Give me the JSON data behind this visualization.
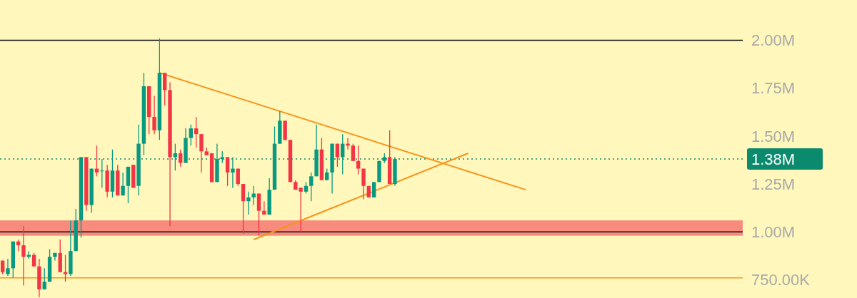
{
  "chart_data": {
    "type": "candlestick",
    "ylim": [
      655000,
      2210000
    ],
    "yticks": [
      {
        "value": 750000,
        "label": "750.00K"
      },
      {
        "value": 1000000,
        "label": "1.00M"
      },
      {
        "value": 1250000,
        "label": "1.25M"
      },
      {
        "value": 1500000,
        "label": "1.50M"
      },
      {
        "value": 1750000,
        "label": "1.75M"
      },
      {
        "value": 2000000,
        "label": "2.00M"
      }
    ],
    "tick_labels": "y",
    "grid": false,
    "categories": [
      null,
      null,
      null,
      null,
      null,
      null,
      null,
      null,
      null,
      null,
      null,
      null,
      null,
      null,
      null,
      null,
      null,
      null,
      null,
      null,
      null,
      null,
      null,
      null,
      null,
      null,
      null,
      null,
      null,
      null,
      null,
      null,
      null,
      null,
      null,
      null,
      null,
      null,
      null,
      null,
      null,
      null,
      null,
      null,
      null,
      null,
      null,
      null,
      null,
      null,
      null,
      null,
      null,
      null,
      null,
      null,
      null,
      null,
      null,
      null,
      null,
      null,
      null,
      null,
      null,
      null,
      null,
      null,
      null,
      null,
      null,
      null,
      null,
      null,
      null,
      null,
      null,
      null,
      null,
      null,
      null,
      null,
      null,
      null,
      null,
      null,
      null,
      null,
      null,
      null,
      null,
      null,
      null,
      null,
      null,
      null,
      null,
      null,
      null,
      null,
      null,
      null,
      null,
      null,
      null,
      null,
      null,
      null,
      null,
      null,
      null,
      null,
      null,
      null,
      null,
      null,
      null,
      null,
      null,
      null,
      null,
      null,
      null,
      null,
      null,
      null,
      null,
      null,
      null,
      null,
      null,
      null,
      null,
      null,
      null,
      null,
      null,
      null,
      null,
      null,
      null,
      null
    ],
    "ohlc": [
      [
        850000,
        850000,
        780000,
        790000
      ],
      [
        780000,
        860000,
        770000,
        810000
      ],
      [
        810000,
        950000,
        760000,
        950000
      ],
      [
        950000,
        960000,
        900000,
        930000
      ],
      [
        930000,
        1030000,
        720000,
        870000
      ],
      [
        870000,
        900000,
        860000,
        880000
      ],
      [
        880000,
        890000,
        820000,
        820000
      ],
      [
        820000,
        860000,
        660000,
        700000
      ],
      [
        700000,
        810000,
        700000,
        740000
      ],
      [
        740000,
        910000,
        740000,
        870000
      ],
      [
        870000,
        890000,
        850000,
        890000
      ],
      [
        890000,
        960000,
        790000,
        790000
      ],
      [
        790000,
        880000,
        740000,
        780000
      ],
      [
        780000,
        1060000,
        770000,
        900000
      ],
      [
        900000,
        1120000,
        900000,
        1060000
      ],
      [
        1060000,
        1390000,
        970000,
        1390000
      ],
      [
        1390000,
        1390000,
        1110000,
        1140000
      ],
      [
        1140000,
        1330000,
        1100000,
        1330000
      ],
      [
        1330000,
        1450000,
        1290000,
        1310000
      ],
      [
        1320000,
        1380000,
        1230000,
        1320000
      ],
      [
        1320000,
        1350000,
        1180000,
        1210000
      ],
      [
        1210000,
        1430000,
        1180000,
        1320000
      ],
      [
        1320000,
        1350000,
        1190000,
        1190000
      ],
      [
        1190000,
        1310000,
        1190000,
        1240000
      ],
      [
        1240000,
        1340000,
        1150000,
        1340000
      ],
      [
        1350000,
        1350000,
        1230000,
        1230000
      ],
      [
        1240000,
        1560000,
        1190000,
        1460000
      ],
      [
        1460000,
        1830000,
        1400000,
        1760000
      ],
      [
        1760000,
        1760000,
        1510000,
        1600000
      ],
      [
        1600000,
        1710000,
        1510000,
        1530000
      ],
      [
        1530000,
        2010000,
        1480000,
        1830000
      ],
      [
        1830000,
        1830000,
        1660000,
        1740000
      ],
      [
        1740000,
        1780000,
        1030000,
        1390000
      ],
      [
        1390000,
        1460000,
        1320000,
        1410000
      ],
      [
        1410000,
        1430000,
        1340000,
        1360000
      ],
      [
        1360000,
        1540000,
        1360000,
        1490000
      ],
      [
        1490000,
        1560000,
        1450000,
        1540000
      ],
      [
        1540000,
        1600000,
        1440000,
        1510000
      ],
      [
        1510000,
        1510000,
        1310000,
        1420000
      ],
      [
        1420000,
        1440000,
        1400000,
        1400000
      ],
      [
        1410000,
        1410000,
        1260000,
        1260000
      ],
      [
        1260000,
        1460000,
        1260000,
        1380000
      ],
      [
        1380000,
        1420000,
        1360000,
        1390000
      ],
      [
        1390000,
        1390000,
        1240000,
        1310000
      ],
      [
        1310000,
        1390000,
        1230000,
        1330000
      ],
      [
        1330000,
        1330000,
        1240000,
        1250000
      ],
      [
        1250000,
        1250000,
        990000,
        1160000
      ],
      [
        1160000,
        1210000,
        1090000,
        1180000
      ],
      [
        1180000,
        1240000,
        1140000,
        1200000
      ],
      [
        1200000,
        1200000,
        980000,
        1110000
      ],
      [
        1110000,
        1160000,
        1090000,
        1090000
      ],
      [
        1090000,
        1280000,
        1090000,
        1220000
      ],
      [
        1220000,
        1550000,
        1220000,
        1460000
      ],
      [
        1460000,
        1630000,
        1460000,
        1580000
      ],
      [
        1580000,
        1580000,
        1480000,
        1480000
      ],
      [
        1480000,
        1480000,
        1260000,
        1260000
      ],
      [
        1260000,
        1270000,
        1220000,
        1220000
      ],
      [
        1230000,
        1230000,
        1000000,
        1210000
      ],
      [
        1210000,
        1260000,
        1200000,
        1240000
      ],
      [
        1240000,
        1310000,
        1160000,
        1290000
      ],
      [
        1290000,
        1560000,
        1290000,
        1430000
      ],
      [
        1430000,
        1490000,
        1270000,
        1270000
      ],
      [
        1270000,
        1330000,
        1270000,
        1310000
      ],
      [
        1310000,
        1460000,
        1200000,
        1460000
      ],
      [
        1460000,
        1460000,
        1340000,
        1390000
      ],
      [
        1390000,
        1510000,
        1300000,
        1460000
      ],
      [
        1460000,
        1490000,
        1430000,
        1450000
      ],
      [
        1450000,
        1460000,
        1370000,
        1370000
      ],
      [
        1370000,
        1450000,
        1300000,
        1330000
      ],
      [
        1330000,
        1330000,
        1170000,
        1240000
      ],
      [
        1240000,
        1240000,
        1180000,
        1180000
      ],
      [
        1180000,
        1260000,
        1180000,
        1260000
      ],
      [
        1260000,
        1370000,
        1260000,
        1370000
      ],
      [
        1370000,
        1410000,
        1360000,
        1390000
      ],
      [
        1390000,
        1530000,
        1250000,
        1250000
      ],
      [
        1250000,
        1390000,
        1240000,
        1380000
      ],
      null,
      null,
      null,
      null,
      null,
      null,
      null,
      null,
      null,
      null,
      null,
      null,
      null,
      null,
      null,
      null,
      null,
      null,
      null,
      null,
      null,
      null,
      null,
      null,
      null,
      null,
      null,
      null,
      null,
      null,
      null,
      null,
      null,
      null,
      null,
      null,
      null,
      null,
      null,
      null,
      null,
      null,
      null,
      null,
      null,
      null,
      null,
      null,
      null,
      null,
      null,
      null,
      null,
      null,
      null,
      null,
      null,
      null,
      null,
      null,
      null,
      null,
      null,
      null,
      null,
      null
    ],
    "colors": [
      "#f23645",
      "#089981",
      "#089981",
      "#f23645",
      "#f23645",
      "#089981",
      "#f23645",
      "#f23645",
      "#089981",
      "#089981",
      "#089981",
      "#f23645",
      "#f23645",
      "#089981",
      "#089981",
      "#089981",
      "#f23645",
      "#089981",
      "#f23645",
      "#089981",
      "#f23645",
      "#089981",
      "#f23645",
      "#089981",
      "#089981",
      "#f23645",
      "#089981",
      "#089981",
      "#f23645",
      "#f23645",
      "#089981",
      "#f23645",
      "#f23645",
      "#089981",
      "#f23645",
      "#089981",
      "#089981",
      "#f23645",
      "#f23645",
      "#f23645",
      "#f23645",
      "#089981",
      "#089981",
      "#f23645",
      "#089981",
      "#f23645",
      "#f23645",
      "#089981",
      "#089981",
      "#f23645",
      "#f23645",
      "#089981",
      "#089981",
      "#089981",
      "#f23645",
      "#f23645",
      "#f23645",
      "#f23645",
      "#089981",
      "#089981",
      "#089981",
      "#f23645",
      "#089981",
      "#089981",
      "#f23645",
      "#089981",
      "#f23645",
      "#f23645",
      "#f23645",
      "#f23645",
      "#f23645",
      "#089981",
      "#089981",
      "#089981",
      "#f23645",
      "#089981",
      null,
      null,
      null,
      null,
      null,
      null,
      null,
      null,
      null,
      null,
      null,
      null,
      null,
      null,
      null,
      null,
      null,
      null,
      null,
      null,
      null,
      null,
      null,
      null,
      null,
      null,
      null,
      null,
      null,
      null,
      null,
      null,
      null,
      null,
      null,
      null,
      null,
      null,
      null,
      null,
      null,
      null,
      null,
      null,
      null,
      null,
      null,
      null,
      null,
      null,
      null,
      null,
      null,
      null,
      null,
      null,
      null,
      null,
      null,
      null,
      null,
      null,
      null,
      null,
      null,
      null
    ],
    "series": [
      {
        "type": "line",
        "color": "#f7941d",
        "values": [
          null,
          null,
          null,
          null,
          null,
          null,
          null,
          null,
          null,
          null,
          null,
          null,
          null,
          null,
          null,
          null,
          null,
          null,
          null,
          null,
          null,
          null,
          null,
          null,
          null,
          null,
          null,
          null,
          null,
          null,
          1830000,
          null,
          null,
          null,
          null,
          null,
          null,
          null,
          null,
          null,
          null,
          null,
          null,
          null,
          null,
          null,
          null,
          null,
          null,
          null,
          null,
          null,
          null,
          null,
          null,
          null,
          null,
          null,
          null,
          null,
          null,
          null,
          null,
          null,
          null,
          null,
          null,
          null,
          null,
          null,
          null,
          null,
          null,
          null,
          null,
          null,
          null,
          null,
          null,
          null,
          null,
          null,
          null,
          null,
          null,
          null,
          null,
          null,
          null,
          null,
          null,
          null,
          null,
          null,
          null,
          null,
          null,
          null,
          null,
          null,
          1220000,
          null,
          null,
          null,
          null,
          null,
          null,
          null,
          null,
          null,
          null,
          null,
          null,
          null,
          null,
          null,
          null,
          null,
          null,
          null,
          null,
          null,
          null,
          null,
          null,
          null,
          null,
          null,
          null,
          null,
          null,
          null,
          null,
          null,
          null,
          null,
          null,
          null,
          null,
          null,
          null,
          null
        ]
      },
      {
        "type": "line",
        "color": "#f7941d",
        "values": [
          null,
          null,
          null,
          null,
          null,
          null,
          null,
          null,
          null,
          null,
          null,
          null,
          null,
          null,
          null,
          null,
          null,
          null,
          null,
          null,
          null,
          null,
          null,
          null,
          null,
          null,
          null,
          null,
          null,
          null,
          null,
          null,
          null,
          null,
          null,
          null,
          null,
          null,
          null,
          null,
          null,
          null,
          null,
          null,
          null,
          null,
          null,
          null,
          960000,
          null,
          null,
          null,
          null,
          null,
          null,
          null,
          null,
          null,
          null,
          null,
          null,
          null,
          null,
          null,
          null,
          null,
          null,
          null,
          null,
          null,
          null,
          null,
          null,
          null,
          null,
          null,
          null,
          null,
          null,
          null,
          null,
          null,
          null,
          null,
          null,
          null,
          null,
          null,
          null,
          1410000,
          null,
          null,
          null,
          null,
          null,
          null,
          null,
          null,
          null,
          null,
          null,
          null,
          null,
          null,
          null,
          null,
          null,
          null,
          null,
          null,
          null,
          null,
          null,
          null,
          null,
          null,
          null,
          null,
          null,
          null,
          null,
          null,
          null,
          null,
          null,
          null,
          null,
          null,
          null,
          null,
          null,
          null,
          null,
          null,
          null,
          null,
          null,
          null,
          null,
          null,
          null,
          null
        ]
      }
    ],
    "bands": [
      {
        "axis": "y",
        "from": 980000,
        "to": 1060000,
        "color": "#f5857a"
      }
    ],
    "ref_lines": [
      {
        "axis": "y",
        "value": 2000000,
        "color": "#111111",
        "line_style": "solid"
      },
      {
        "axis": "y",
        "value": 1000000,
        "color": "#111111",
        "line_style": "solid"
      },
      {
        "axis": "y",
        "value": 760000,
        "color": "#f7941d",
        "line_style": "solid"
      },
      {
        "axis": "y",
        "value": 1380000,
        "color": "#0b8a6e",
        "line_style": "dotted",
        "label": "1.38M"
      }
    ]
  }
}
